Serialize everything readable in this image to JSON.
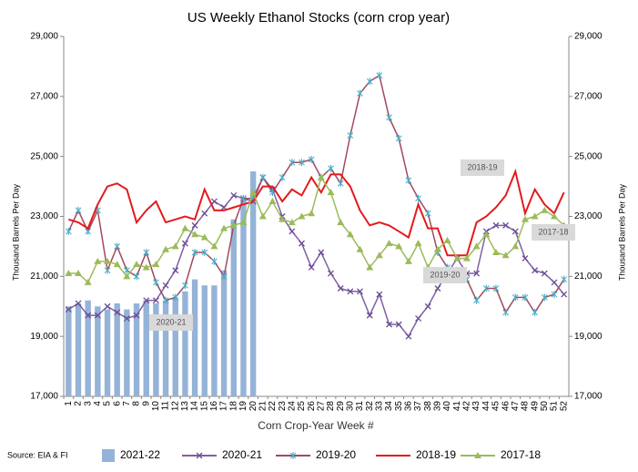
{
  "chart_data": {
    "type": "line",
    "title": "US Weekly Ethanol Stocks (corn crop year)",
    "x_label": "Corn Crop-Year Week #",
    "y_label": "Thousand Barrels Per Day",
    "y2_label": "Thousand Barrels Per Day",
    "source": "Source: EIA & FI",
    "annotations": [
      "2018-19",
      "2017-18",
      "2019-20",
      "2020-21"
    ],
    "categories": [
      "1",
      "2",
      "3",
      "4",
      "5",
      "6",
      "7",
      "8",
      "9",
      "10",
      "11",
      "12",
      "13",
      "14",
      "15",
      "16",
      "17",
      "18",
      "19",
      "20",
      "21",
      "22",
      "23",
      "24",
      "25",
      "26",
      "27",
      "28",
      "29",
      "30",
      "31",
      "32",
      "33",
      "34",
      "35",
      "36",
      "37",
      "38",
      "39",
      "40",
      "41",
      "42",
      "43",
      "44",
      "45",
      "46",
      "47",
      "48",
      "49",
      "50",
      "51",
      "52"
    ],
    "ylim": [
      17000,
      29000
    ],
    "yticks": [
      {
        "value": 17000,
        "label": "17,000"
      },
      {
        "value": 19000,
        "label": "19,000"
      },
      {
        "value": 21000,
        "label": "21,000"
      },
      {
        "value": 23000,
        "label": "23,000"
      },
      {
        "value": 25000,
        "label": "25,000"
      },
      {
        "value": 27000,
        "label": "27,000"
      },
      {
        "value": 29000,
        "label": "29,000"
      }
    ],
    "y2lim": [
      17000,
      29000
    ],
    "y2ticks": [
      {
        "value": 17000,
        "label": "17,000"
      },
      {
        "value": 19000,
        "label": "19,000"
      },
      {
        "value": 21000,
        "label": "21,000"
      },
      {
        "value": 23000,
        "label": "23,000"
      },
      {
        "value": 25000,
        "label": "25,000"
      },
      {
        "value": 27000,
        "label": "27,000"
      },
      {
        "value": 29000,
        "label": "29,000"
      }
    ],
    "grid": false,
    "legend": "bottom",
    "series": [
      {
        "name": "2021-22",
        "kind": "bar",
        "color": "#95b3d7",
        "values": [
          20000,
          20100,
          20200,
          20000,
          19900,
          20100,
          19900,
          20100,
          20200,
          20100,
          20200,
          20300,
          20500,
          20900,
          20700,
          20700,
          21200,
          22900,
          23600,
          24500,
          null,
          null,
          null,
          null,
          null,
          null,
          null,
          null,
          null,
          null,
          null,
          null,
          null,
          null,
          null,
          null,
          null,
          null,
          null,
          null,
          null,
          null,
          null,
          null,
          null,
          null,
          null,
          null,
          null,
          null,
          null,
          null
        ]
      },
      {
        "name": "2020-21",
        "kind": "line",
        "color": "#7f5fa6",
        "marker": "x",
        "marker_color": "#6a4c93",
        "values": [
          19900,
          20100,
          19700,
          19700,
          20000,
          19800,
          19600,
          19700,
          20200,
          20200,
          20700,
          21200,
          22100,
          22700,
          23100,
          23500,
          23300,
          23700,
          23600,
          23500,
          24300,
          23900,
          23000,
          22500,
          22100,
          21300,
          21800,
          21100,
          20600,
          20500,
          20500,
          19700,
          20400,
          19400,
          19400,
          19000,
          19600,
          20000,
          20600,
          21100,
          21600,
          21100,
          21100,
          22500,
          22700,
          22700,
          22500,
          21600,
          21200,
          21100,
          20800,
          20400
        ]
      },
      {
        "name": "2019-20",
        "kind": "line",
        "color": "#a14a5e",
        "marker": "asterisk",
        "marker_color": "#4bacc6",
        "values": [
          22500,
          23200,
          22500,
          23200,
          21200,
          22000,
          21200,
          21000,
          21800,
          20800,
          20200,
          20300,
          20700,
          21800,
          21800,
          21500,
          21000,
          22700,
          23600,
          23600,
          24300,
          23800,
          24300,
          24800,
          24800,
          24900,
          24300,
          24600,
          24100,
          25700,
          27100,
          27500,
          27700,
          26300,
          25600,
          24200,
          23600,
          23100,
          21800,
          21300,
          21200,
          20900,
          20200,
          20600,
          20600,
          19800,
          20300,
          20300,
          19800,
          20300,
          20400,
          20900
        ]
      },
      {
        "name": "2018-19",
        "kind": "line",
        "color": "#e41a1c",
        "marker": "none",
        "marker_color": "#e41a1c",
        "values": [
          22900,
          22800,
          22600,
          23400,
          24000,
          24100,
          23900,
          22800,
          23200,
          23500,
          22800,
          22900,
          23000,
          22900,
          23900,
          23200,
          23200,
          23300,
          23400,
          23500,
          24000,
          24000,
          23500,
          23900,
          23700,
          24300,
          23800,
          24400,
          24400,
          24000,
          23200,
          22700,
          22800,
          22700,
          22500,
          22300,
          23400,
          22600,
          22600,
          21700,
          21700,
          21700,
          22800,
          23000,
          23300,
          23700,
          24500,
          23100,
          23900,
          23400,
          23100,
          23800
        ]
      },
      {
        "name": "2017-18",
        "kind": "line",
        "color": "#9bbb59",
        "marker": "triangle",
        "marker_color": "#9bbb59",
        "values": [
          21100,
          21100,
          20800,
          21500,
          21500,
          21400,
          21000,
          21400,
          21300,
          21400,
          21900,
          22000,
          22600,
          22400,
          22300,
          22000,
          22600,
          22700,
          22800,
          23800,
          23000,
          23500,
          22900,
          22800,
          23000,
          23100,
          24300,
          23800,
          22800,
          22400,
          21900,
          21300,
          21700,
          22100,
          22000,
          21500,
          22100,
          21300,
          21900,
          22200,
          21600,
          21600,
          22000,
          22400,
          21800,
          21700,
          22000,
          22900,
          23000,
          23200,
          23000,
          22700
        ]
      }
    ]
  }
}
